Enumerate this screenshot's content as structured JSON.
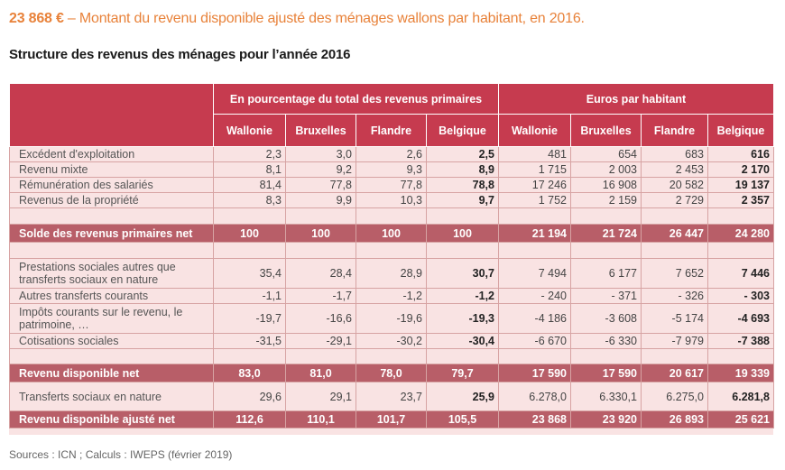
{
  "headline": {
    "value": "23 868 €",
    "text": " – Montant du revenu disponible ajusté des ménages wallons par habitant, en 2016."
  },
  "subtitle": "Structure des revenus des ménages pour l’année 2016",
  "table": {
    "group_headers": [
      "En pourcentage du total des revenus primaires",
      "Euros par habitant"
    ],
    "columns": [
      "Wallonie",
      "Bruxelles",
      "Flandre",
      "Belgique",
      "Wallonie",
      "Bruxelles",
      "Flandre",
      "Belgique"
    ],
    "rows": [
      {
        "label": "Excédent d'exploitation",
        "values": [
          "2,3",
          "3,0",
          "2,6",
          "2,5",
          "481",
          "654",
          "683",
          "616"
        ]
      },
      {
        "label": "Revenu mixte",
        "values": [
          "8,1",
          "9,2",
          "9,3",
          "8,9",
          "1 715",
          "2 003",
          "2 453",
          "2 170"
        ]
      },
      {
        "label": "Rémunération des salariés",
        "values": [
          "81,4",
          "77,8",
          "77,8",
          "78,8",
          "17 246",
          "16 908",
          "20 582",
          "19 137"
        ]
      },
      {
        "label": "Revenus de la propriété",
        "values": [
          "8,3",
          "9,9",
          "10,3",
          "9,7",
          "1 752",
          "2 159",
          "2 729",
          "2 357"
        ]
      },
      {
        "label": "Solde des revenus primaires net",
        "values": [
          "100",
          "100",
          "100",
          "100",
          "21 194",
          "21 724",
          "26 447",
          "24 280"
        ]
      },
      {
        "label": "Prestations sociales autres que transferts sociaux en nature",
        "values": [
          "35,4",
          "28,4",
          "28,9",
          "30,7",
          "7 494",
          "6 177",
          "7 652",
          "7 446"
        ]
      },
      {
        "label": "Autres transferts courants",
        "values": [
          "-1,1",
          "-1,7",
          "-1,2",
          "-1,2",
          "- 240",
          "- 371",
          "- 326",
          "- 303"
        ]
      },
      {
        "label": "Impôts courants sur le revenu, le patrimoine, …",
        "values": [
          "-19,7",
          "-16,6",
          "-19,6",
          "-19,3",
          "-4 186",
          "-3 608",
          "-5 174",
          "-4 693"
        ]
      },
      {
        "label": "Cotisations sociales",
        "values": [
          "-31,5",
          "-29,1",
          "-30,2",
          "-30,4",
          "-6 670",
          "-6 330",
          "-7 979",
          "-7 388"
        ]
      },
      {
        "label": "Revenu disponible net",
        "values": [
          "83,0",
          "81,0",
          "78,0",
          "79,7",
          "17 590",
          "17 590",
          "20 617",
          "19 339"
        ]
      },
      {
        "label": "Transferts sociaux en nature",
        "values": [
          "29,6",
          "29,1",
          "23,7",
          "25,9",
          "6.278,0",
          "6.330,1",
          "6.275,0",
          "6.281,8"
        ]
      },
      {
        "label": "Revenu disponible ajusté net",
        "values": [
          "112,6",
          "110,1",
          "101,7",
          "105,5",
          "23 868",
          "23 920",
          "26 893",
          "25 621"
        ]
      }
    ]
  },
  "sources": "Sources : ICN ; Calculs : IWEPS (février 2019)"
}
